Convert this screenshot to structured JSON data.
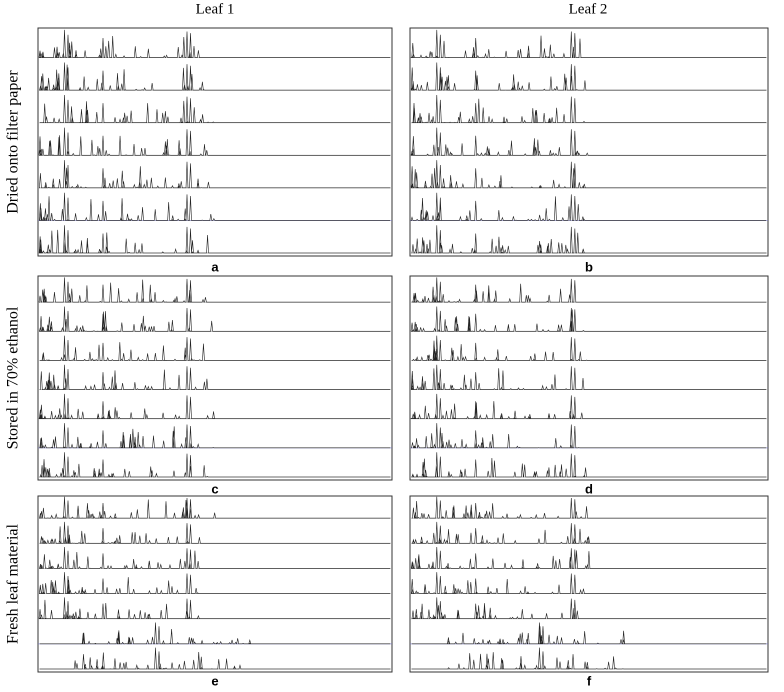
{
  "columns": [
    "Leaf 1",
    "Leaf 2"
  ],
  "rows": [
    "Dried onto filter paper",
    "Stored in 70% ethanol",
    "Fresh leaf material"
  ],
  "panels": [
    "a",
    "b",
    "c",
    "d",
    "e",
    "f"
  ]
}
